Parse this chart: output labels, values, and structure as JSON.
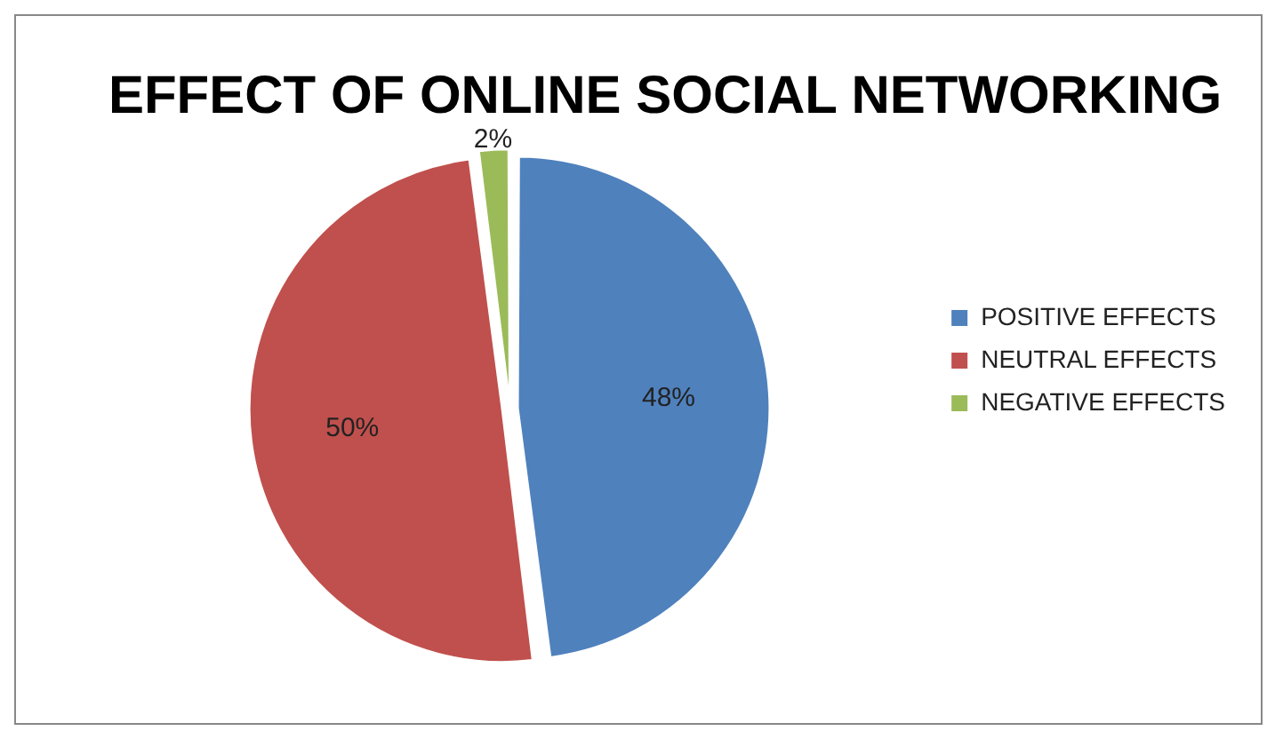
{
  "chart_data": {
    "type": "pie",
    "title": "EFFECT OF ONLINE SOCIAL NETWORKING",
    "categories": [
      "POSITIVE EFFECTS",
      "NEUTRAL EFFECTS",
      "NEGATIVE EFFECTS"
    ],
    "values": [
      48,
      50,
      2
    ],
    "colors": [
      "#4f81bd",
      "#c0504d",
      "#9bbb59"
    ],
    "value_labels": [
      "48%",
      "50%",
      "2%"
    ],
    "legend": "right"
  }
}
